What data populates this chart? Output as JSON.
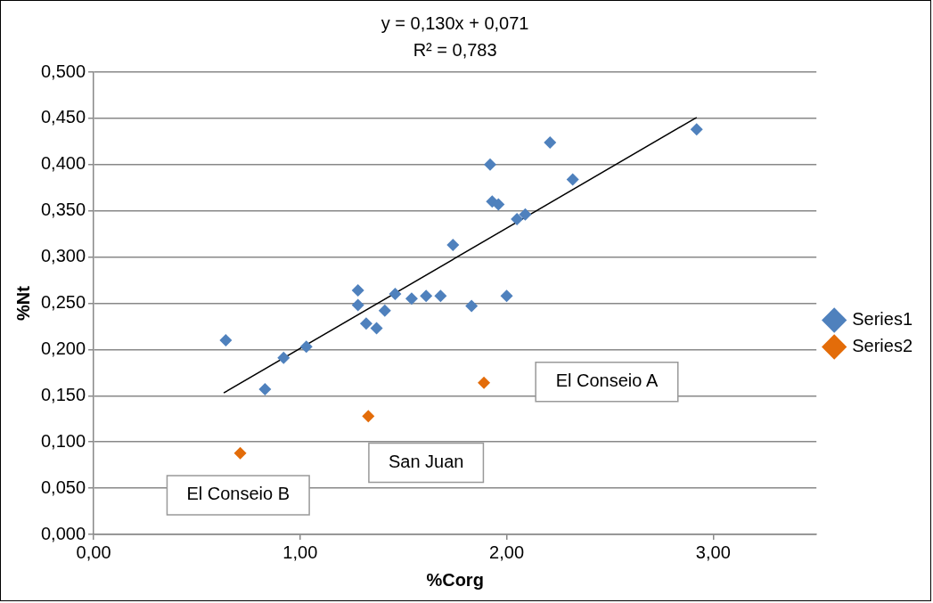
{
  "chart_data": {
    "type": "scatter",
    "xlabel": "%Corg",
    "ylabel": "%Nt",
    "xlim": [
      0,
      3.5
    ],
    "xticks": [
      {
        "value": 0,
        "label": "0,00"
      },
      {
        "value": 1,
        "label": "1,00"
      },
      {
        "value": 2,
        "label": "2,00"
      },
      {
        "value": 3,
        "label": "3,00"
      }
    ],
    "ylim": [
      0,
      0.5
    ],
    "yticks": [
      {
        "value": 0,
        "label": "0,000"
      },
      {
        "value": 0.05,
        "label": "0,050"
      },
      {
        "value": 0.1,
        "label": "0,100"
      },
      {
        "value": 0.15,
        "label": "0,150"
      },
      {
        "value": 0.2,
        "label": "0,200"
      },
      {
        "value": 0.25,
        "label": "0,250"
      },
      {
        "value": 0.3,
        "label": "0,300"
      },
      {
        "value": 0.35,
        "label": "0,350"
      },
      {
        "value": 0.4,
        "label": "0,400"
      },
      {
        "value": 0.45,
        "label": "0,450"
      },
      {
        "value": 0.5,
        "label": "0,500"
      }
    ],
    "grid": "y",
    "legend": "right",
    "marker": "diamond",
    "series": [
      {
        "name": "Series1",
        "color": "#4f81bd",
        "x": [
          0.64,
          0.83,
          0.92,
          1.03,
          1.28,
          1.28,
          1.32,
          1.37,
          1.41,
          1.46,
          1.54,
          1.61,
          1.68,
          1.83,
          2.0,
          1.74,
          1.92,
          1.93,
          1.96,
          2.05,
          2.09,
          2.21,
          2.32,
          2.92
        ],
        "values": [
          0.21,
          0.157,
          0.191,
          0.203,
          0.264,
          0.248,
          0.228,
          0.223,
          0.242,
          0.26,
          0.255,
          0.258,
          0.258,
          0.247,
          0.258,
          0.313,
          0.4,
          0.36,
          0.357,
          0.341,
          0.346,
          0.424,
          0.384,
          0.438
        ]
      },
      {
        "name": "Series2",
        "color": "#e36c09",
        "x": [
          0.71,
          1.33,
          1.89
        ],
        "values": [
          0.088,
          0.128,
          0.164
        ]
      },
      {
        "type": "line",
        "color": "#000000",
        "marker": "none",
        "x": [
          0.63,
          2.92
        ],
        "values": [
          0.153,
          0.451
        ]
      }
    ],
    "annotations": [
      "y = 0,130x + 0,071",
      "R² = 0,783",
      "El Conseio B",
      "San Juan",
      "El Conseio A"
    ]
  }
}
